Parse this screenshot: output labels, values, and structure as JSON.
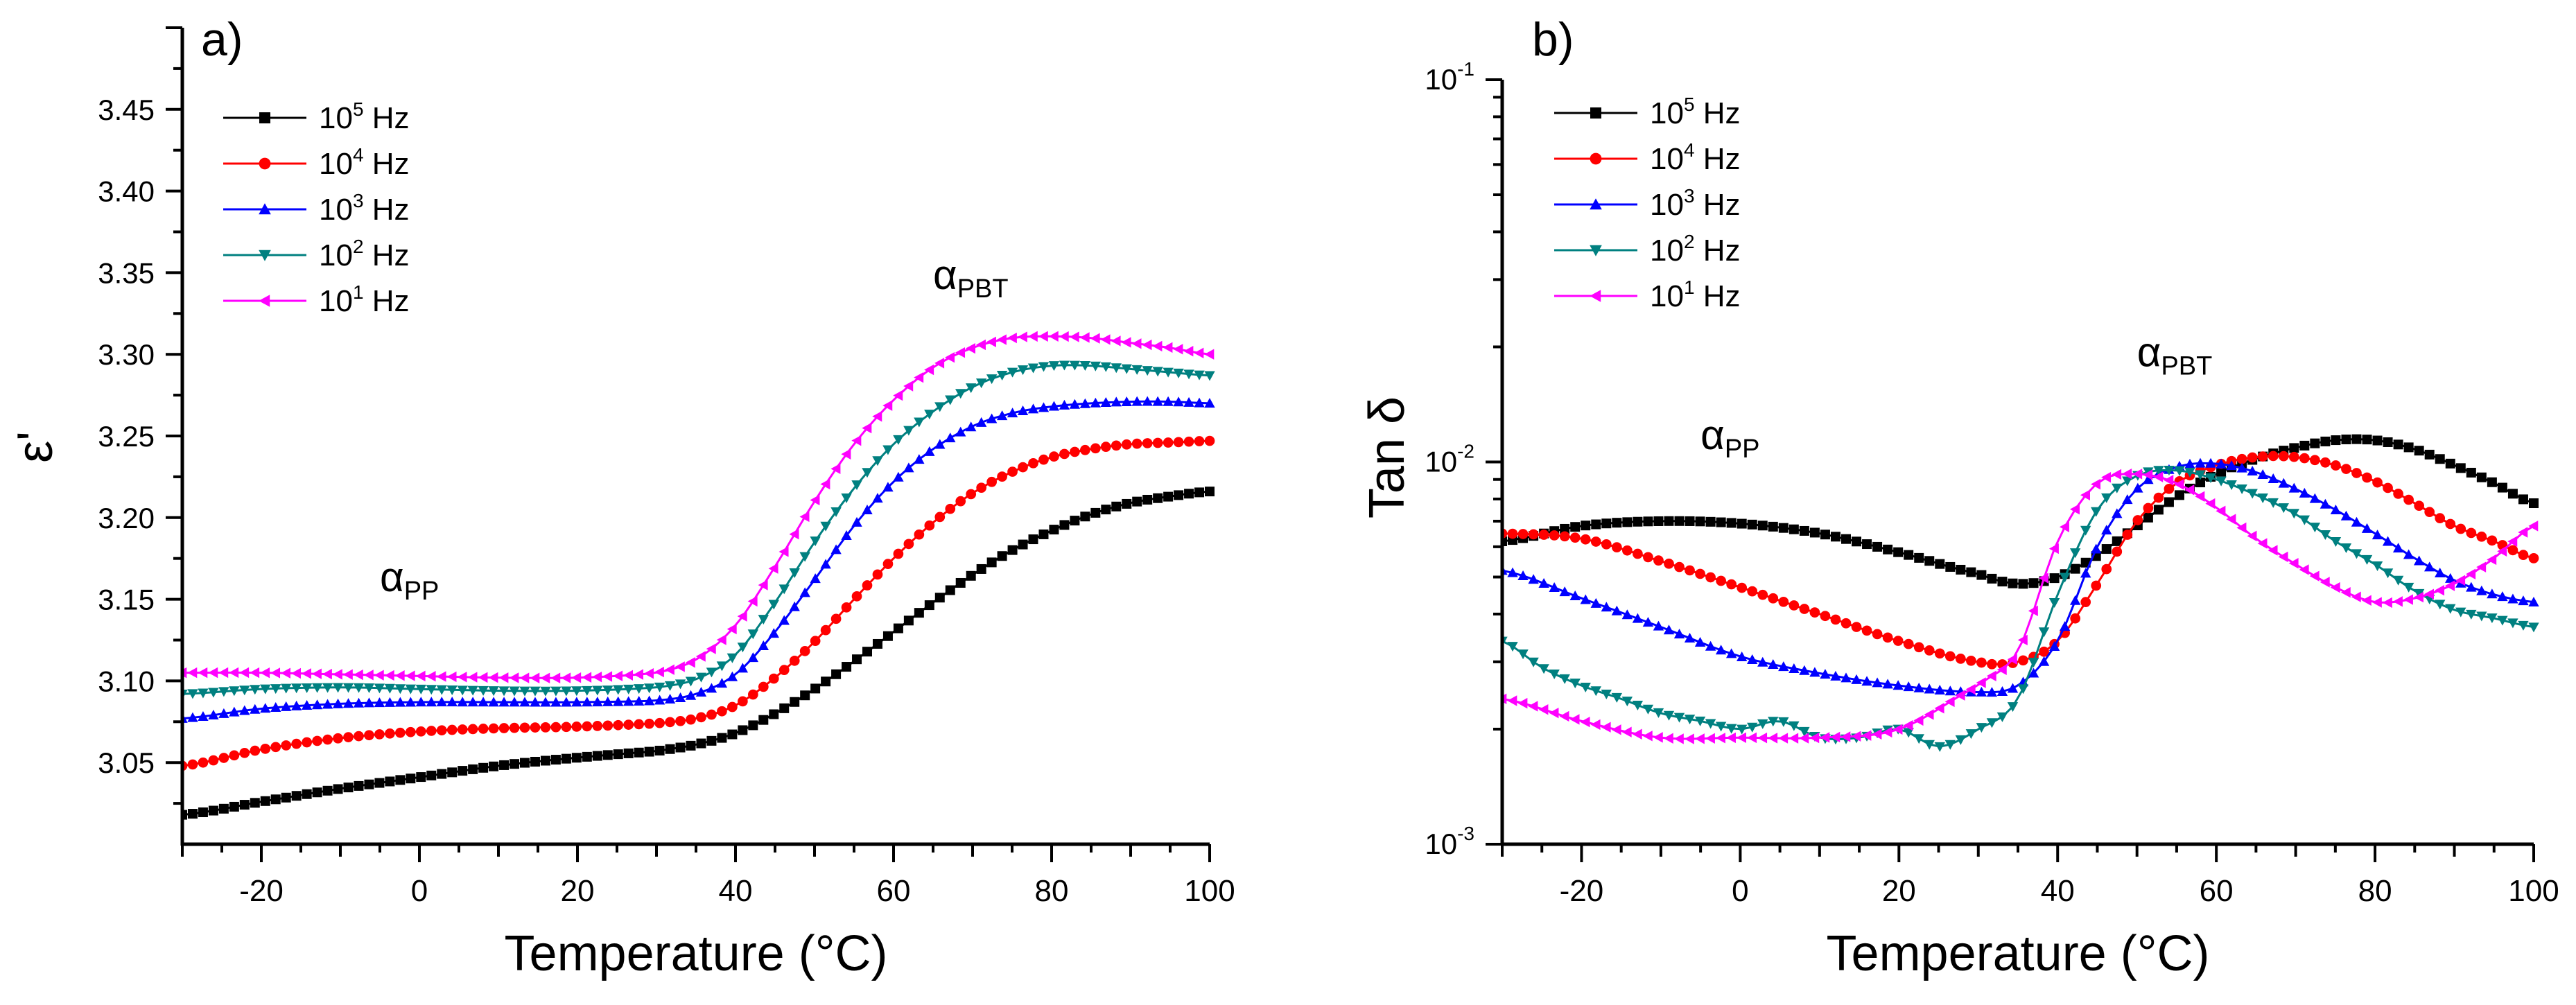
{
  "chart_data": [
    {
      "id": "a",
      "type": "scatter",
      "panel_label": "a)",
      "xlabel": "Temperature (°C)",
      "ylabel": "ε'",
      "xlim": [
        -30,
        100
      ],
      "ylim": [
        3.0,
        3.5
      ],
      "yscale": "linear",
      "x_ticks": [
        -20,
        0,
        20,
        40,
        60,
        80,
        100
      ],
      "x_tick_labels": [
        "-20",
        "0",
        "20",
        "40",
        "60",
        "80",
        "100"
      ],
      "y_ticks": [
        3.05,
        3.1,
        3.15,
        3.2,
        3.25,
        3.3,
        3.35,
        3.4,
        3.45
      ],
      "y_tick_labels": [
        "3.05",
        "3.10",
        "3.15",
        "3.20",
        "3.25",
        "3.30",
        "3.35",
        "3.40",
        "3.45"
      ],
      "legend_position": "top-left",
      "annotations": [
        {
          "text": "α",
          "sub": "PP",
          "x": -5,
          "y": 3.155
        },
        {
          "text": "α",
          "sub": "PBT",
          "x": 65,
          "y": 3.34
        }
      ],
      "series": [
        {
          "name_base": "10",
          "name_exp": "5",
          "name_unit": " Hz",
          "color": "#000000",
          "marker": "square",
          "x": [
            -30,
            -20,
            -10,
            0,
            10,
            20,
            30,
            35,
            40,
            45,
            50,
            55,
            60,
            65,
            70,
            75,
            80,
            85,
            90,
            95,
            100
          ],
          "y": [
            3.018,
            3.026,
            3.034,
            3.041,
            3.048,
            3.053,
            3.057,
            3.061,
            3.068,
            3.08,
            3.095,
            3.112,
            3.13,
            3.148,
            3.165,
            3.18,
            3.192,
            3.202,
            3.209,
            3.213,
            3.216
          ]
        },
        {
          "name_base": "10",
          "name_exp": "4",
          "name_unit": " Hz",
          "color": "#ff0000",
          "marker": "circle",
          "x": [
            -30,
            -20,
            -10,
            0,
            10,
            20,
            30,
            35,
            40,
            45,
            50,
            55,
            60,
            65,
            70,
            75,
            80,
            85,
            90,
            95,
            100
          ],
          "y": [
            3.048,
            3.058,
            3.065,
            3.069,
            3.071,
            3.072,
            3.074,
            3.077,
            3.085,
            3.102,
            3.124,
            3.15,
            3.175,
            3.197,
            3.215,
            3.228,
            3.237,
            3.242,
            3.245,
            3.246,
            3.247
          ]
        },
        {
          "name_base": "10",
          "name_exp": "3",
          "name_unit": " Hz",
          "color": "#0000ff",
          "marker": "triangle-up",
          "x": [
            -30,
            -20,
            -10,
            0,
            10,
            20,
            30,
            35,
            40,
            45,
            50,
            55,
            60,
            65,
            70,
            75,
            80,
            85,
            90,
            95,
            100
          ],
          "y": [
            3.077,
            3.083,
            3.086,
            3.087,
            3.087,
            3.087,
            3.088,
            3.092,
            3.104,
            3.13,
            3.162,
            3.195,
            3.222,
            3.242,
            3.256,
            3.264,
            3.268,
            3.27,
            3.271,
            3.271,
            3.27
          ]
        },
        {
          "name_base": "10",
          "name_exp": "2",
          "name_unit": " Hz",
          "color": "#008080",
          "marker": "triangle-down",
          "x": [
            -30,
            -20,
            -10,
            0,
            10,
            20,
            30,
            35,
            40,
            45,
            50,
            55,
            60,
            65,
            70,
            75,
            80,
            85,
            90,
            95,
            100
          ],
          "y": [
            3.092,
            3.095,
            3.096,
            3.095,
            3.094,
            3.094,
            3.096,
            3.101,
            3.116,
            3.148,
            3.185,
            3.218,
            3.245,
            3.265,
            3.28,
            3.289,
            3.293,
            3.293,
            3.291,
            3.289,
            3.287
          ]
        },
        {
          "name_base": "10",
          "name_exp": "1",
          "name_unit": " Hz",
          "color": "#ff00ff",
          "marker": "triangle-left",
          "x": [
            -30,
            -20,
            -10,
            0,
            10,
            20,
            30,
            35,
            40,
            45,
            50,
            55,
            60,
            65,
            70,
            75,
            80,
            85,
            90,
            95,
            100
          ],
          "y": [
            3.105,
            3.105,
            3.104,
            3.103,
            3.102,
            3.102,
            3.105,
            3.113,
            3.134,
            3.17,
            3.21,
            3.245,
            3.272,
            3.292,
            3.304,
            3.31,
            3.311,
            3.31,
            3.307,
            3.304,
            3.3
          ]
        }
      ]
    },
    {
      "id": "b",
      "type": "scatter",
      "panel_label": "b)",
      "xlabel": "Temperature (°C)",
      "ylabel": "Tan δ",
      "xlim": [
        -30,
        100
      ],
      "ylim": [
        0.001,
        0.1
      ],
      "yscale": "log",
      "x_ticks": [
        -20,
        0,
        20,
        40,
        60,
        80,
        100
      ],
      "x_tick_labels": [
        "-20",
        "0",
        "20",
        "40",
        "60",
        "80",
        "100"
      ],
      "y_ticks": [
        0.001,
        0.01,
        0.1
      ],
      "y_tick_base": "10",
      "y_tick_exps": [
        "-3",
        "-2",
        "-1"
      ],
      "legend_position": "top-left",
      "annotations": [
        {
          "text": "α",
          "sub": "PP",
          "x": -5,
          "y": 0.0108
        },
        {
          "text": "α",
          "sub": "PBT",
          "x": 50,
          "y": 0.0178
        }
      ],
      "series": [
        {
          "name_base": "10",
          "name_exp": "5",
          "name_unit": " Hz",
          "color": "#000000",
          "marker": "square",
          "x": [
            -30,
            -20,
            -10,
            0,
            10,
            20,
            30,
            35,
            40,
            45,
            50,
            55,
            60,
            65,
            70,
            75,
            80,
            85,
            90,
            95,
            100
          ],
          "y": [
            0.0062,
            0.0068,
            0.007,
            0.0069,
            0.0065,
            0.0058,
            0.0051,
            0.0048,
            0.005,
            0.0057,
            0.0068,
            0.0081,
            0.0093,
            0.0102,
            0.0109,
            0.0114,
            0.0114,
            0.0108,
            0.0098,
            0.0088,
            0.0078
          ]
        },
        {
          "name_base": "10",
          "name_exp": "4",
          "name_unit": " Hz",
          "color": "#ff0000",
          "marker": "circle",
          "x": [
            -30,
            -20,
            -10,
            0,
            10,
            20,
            30,
            35,
            40,
            45,
            50,
            55,
            60,
            65,
            70,
            75,
            80,
            85,
            90,
            95,
            100
          ],
          "y": [
            0.0065,
            0.0063,
            0.0055,
            0.0047,
            0.004,
            0.0034,
            0.003,
            0.003,
            0.0034,
            0.0048,
            0.007,
            0.0088,
            0.0098,
            0.0103,
            0.0103,
            0.0098,
            0.0089,
            0.0078,
            0.0068,
            0.0062,
            0.0056
          ]
        },
        {
          "name_base": "10",
          "name_exp": "3",
          "name_unit": " Hz",
          "color": "#0000ff",
          "marker": "triangle-up",
          "x": [
            -30,
            -20,
            -10,
            0,
            10,
            20,
            30,
            35,
            40,
            45,
            50,
            55,
            60,
            65,
            70,
            75,
            80,
            85,
            90,
            95,
            100
          ],
          "y": [
            0.0052,
            0.0044,
            0.0037,
            0.0031,
            0.0028,
            0.0026,
            0.0025,
            0.0026,
            0.0034,
            0.006,
            0.0085,
            0.0097,
            0.0099,
            0.0094,
            0.0085,
            0.0075,
            0.0065,
            0.0056,
            0.0049,
            0.0045,
            0.0043
          ]
        },
        {
          "name_base": "10",
          "name_exp": "2",
          "name_unit": " Hz",
          "color": "#008080",
          "marker": "triangle-down",
          "x": [
            -30,
            -25,
            -20,
            -15,
            -10,
            -5,
            0,
            5,
            10,
            15,
            20,
            25,
            30,
            35,
            40,
            45,
            50,
            55,
            60,
            65,
            70,
            75,
            80,
            85,
            90,
            95,
            100
          ],
          "y": [
            0.0034,
            0.0029,
            0.0026,
            0.0024,
            0.0022,
            0.0021,
            0.002,
            0.0021,
            0.0019,
            0.0019,
            0.002,
            0.0018,
            0.002,
            0.0024,
            0.0045,
            0.0075,
            0.0092,
            0.0095,
            0.009,
            0.0082,
            0.0073,
            0.0062,
            0.0054,
            0.0046,
            0.0041,
            0.0039,
            0.0037
          ]
        },
        {
          "name_base": "10",
          "name_exp": "1",
          "name_unit": " Hz",
          "color": "#ff00ff",
          "marker": "triangle-left",
          "x": [
            -30,
            -20,
            -10,
            0,
            10,
            20,
            30,
            35,
            40,
            45,
            50,
            55,
            60,
            65,
            70,
            75,
            80,
            85,
            90,
            95,
            100
          ],
          "y": [
            0.0024,
            0.0021,
            0.0019,
            0.0019,
            0.0019,
            0.002,
            0.0026,
            0.0032,
            0.0062,
            0.0088,
            0.0093,
            0.0088,
            0.0076,
            0.0063,
            0.0054,
            0.0047,
            0.0043,
            0.0044,
            0.0048,
            0.0056,
            0.0068
          ]
        }
      ]
    }
  ]
}
